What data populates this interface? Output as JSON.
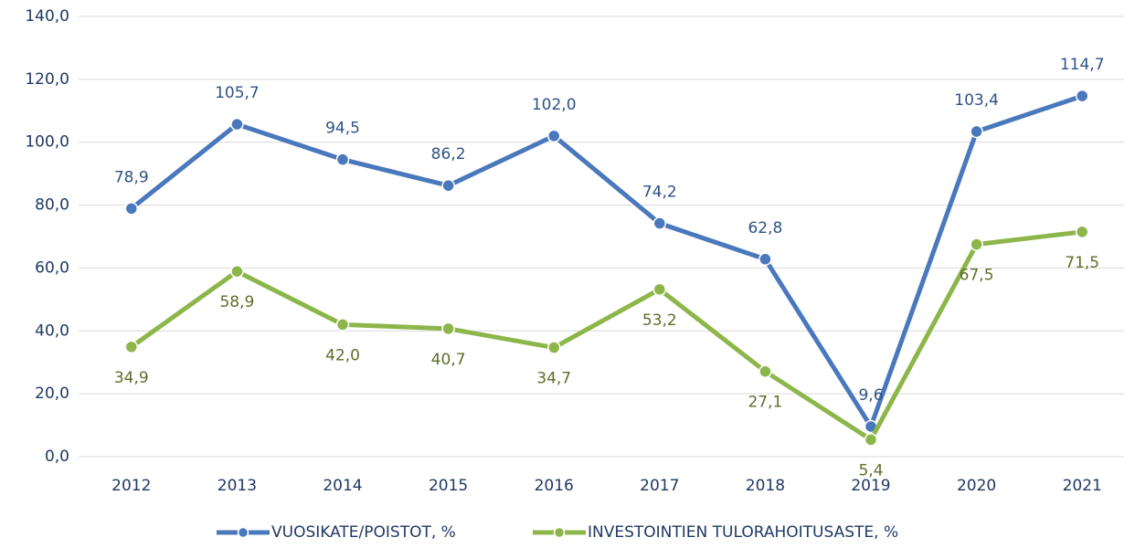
{
  "chart_data": {
    "type": "line",
    "categories": [
      "2012",
      "2013",
      "2014",
      "2015",
      "2016",
      "2017",
      "2018",
      "2019",
      "2020",
      "2021"
    ],
    "series": [
      {
        "name": "VUOSIKATE/POISTOT, %",
        "color": "#4a78bd",
        "label_color": "#2f5287",
        "values": [
          78.9,
          105.7,
          94.5,
          86.2,
          102.0,
          74.2,
          62.8,
          9.6,
          103.4,
          114.7
        ],
        "value_labels": [
          "78,9",
          "105,7",
          "94,5",
          "86,2",
          "102,0",
          "74,2",
          "62,8",
          "9,6",
          "103,4",
          "114,7"
        ]
      },
      {
        "name": "INVESTOINTIEN TULORAHOITUSASTE, %",
        "color": "#8db64a",
        "label_color": "#5d6f28",
        "values": [
          34.9,
          58.9,
          42.0,
          40.7,
          34.7,
          53.2,
          27.1,
          5.4,
          67.5,
          71.5
        ],
        "value_labels": [
          "34,9",
          "58,9",
          "42,0",
          "40,7",
          "34,7",
          "53,2",
          "27,1",
          "5,4",
          "67,5",
          "71,5"
        ]
      }
    ],
    "ylim": [
      0,
      140
    ],
    "yticks": [
      {
        "value": 0,
        "label": "0,0"
      },
      {
        "value": 20,
        "label": "20,0"
      },
      {
        "value": 40,
        "label": "40,0"
      },
      {
        "value": 60,
        "label": "60,0"
      },
      {
        "value": 80,
        "label": "80,0"
      },
      {
        "value": 100,
        "label": "100,0"
      },
      {
        "value": 120,
        "label": "120,0"
      },
      {
        "value": 140,
        "label": "140,0"
      }
    ],
    "grid": true,
    "legend": "bottom"
  }
}
